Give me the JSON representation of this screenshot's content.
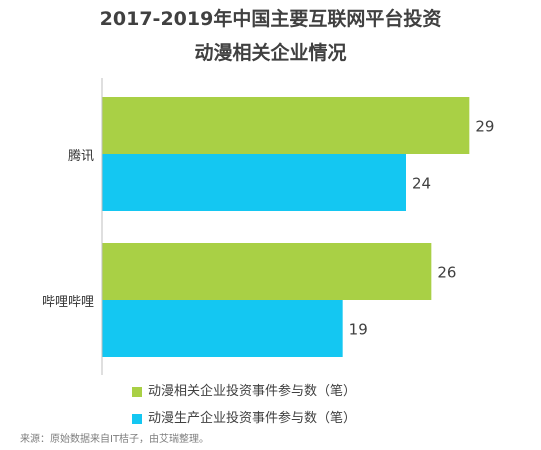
{
  "chart_data": {
    "type": "bar",
    "orientation": "horizontal",
    "title_lines": [
      "2017-2019年中国主要互联网平台投资",
      "动漫相关企业情况"
    ],
    "categories": [
      "腾讯",
      "哔哩哔哩"
    ],
    "series": [
      {
        "name": "动漫相关企业投资事件参与数（笔）",
        "color": "#a9d045",
        "values": [
          29,
          26
        ]
      },
      {
        "name": "动漫生产企业投资事件参与数（笔）",
        "color": "#14c7f2",
        "values": [
          24,
          19
        ]
      }
    ],
    "xlim": [
      0,
      30
    ],
    "grid": false,
    "data_labels": true,
    "legend_position": "bottom-left",
    "source": "来源：原始数据来自IT桔子，由艾瑞整理。"
  }
}
